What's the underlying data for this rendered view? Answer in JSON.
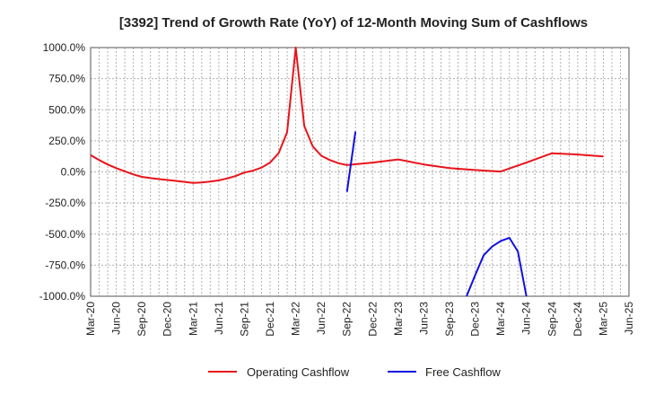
{
  "chart_data": {
    "type": "line",
    "title": "[3392]  Trend of Growth Rate (YoY) of 12-Month Moving Sum of Cashflows",
    "xlabel": "",
    "ylabel": "",
    "ylim": [
      -1000,
      1000
    ],
    "y_ticks": [
      1000,
      750,
      500,
      250,
      0,
      -250,
      -500,
      -750,
      -1000
    ],
    "y_tick_labels": [
      "1000.0%",
      "750.0%",
      "500.0%",
      "250.0%",
      "0.0%",
      "-250.0%",
      "-500.0%",
      "-750.0%",
      "-1000.0%"
    ],
    "x_tick_labels": [
      "Mar-20",
      "Jun-20",
      "Sep-20",
      "Dec-20",
      "Mar-21",
      "Jun-21",
      "Sep-21",
      "Dec-21",
      "Mar-22",
      "Jun-22",
      "Sep-22",
      "Dec-22",
      "Mar-23",
      "Jun-23",
      "Sep-23",
      "Dec-23",
      "Mar-24",
      "Jun-24",
      "Sep-24",
      "Dec-24",
      "Mar-25",
      "Jun-25"
    ],
    "x_range": [
      "Mar-20",
      "Jun-25"
    ],
    "grid": true,
    "legend_position": "bottom-center",
    "series": [
      {
        "name": "Operating Cashflow",
        "color": "#e8141b",
        "points": [
          [
            "Mar-20",
            135
          ],
          [
            "Apr-20",
            95
          ],
          [
            "May-20",
            60
          ],
          [
            "Jun-20",
            30
          ],
          [
            "Jul-20",
            5
          ],
          [
            "Aug-20",
            -20
          ],
          [
            "Sep-20",
            -40
          ],
          [
            "Oct-20",
            -50
          ],
          [
            "Nov-20",
            -58
          ],
          [
            "Dec-20",
            -65
          ],
          [
            "Jan-21",
            -72
          ],
          [
            "Feb-21",
            -80
          ],
          [
            "Mar-21",
            -88
          ],
          [
            "Apr-21",
            -85
          ],
          [
            "May-21",
            -78
          ],
          [
            "Jun-21",
            -68
          ],
          [
            "Jul-21",
            -52
          ],
          [
            "Aug-21",
            -32
          ],
          [
            "Sep-21",
            -5
          ],
          [
            "Oct-21",
            10
          ],
          [
            "Nov-21",
            35
          ],
          [
            "Dec-21",
            75
          ],
          [
            "Jan-22",
            150
          ],
          [
            "Feb-22",
            320
          ],
          [
            "Mar-22",
            1000
          ],
          [
            "Apr-22",
            370
          ],
          [
            "May-22",
            205
          ],
          [
            "Jun-22",
            130
          ],
          [
            "Jul-22",
            95
          ],
          [
            "Aug-22",
            70
          ],
          [
            "Sep-22",
            55
          ],
          [
            "Dec-22",
            75
          ],
          [
            "Mar-23",
            100
          ],
          [
            "Jun-23",
            60
          ],
          [
            "Sep-23",
            30
          ],
          [
            "Dec-23",
            15
          ],
          [
            "Mar-24",
            3
          ],
          [
            "Jun-24",
            75
          ],
          [
            "Sep-24",
            150
          ],
          [
            "Dec-24",
            140
          ],
          [
            "Mar-25",
            125
          ]
        ]
      },
      {
        "name": "Free Cashflow",
        "color": "#1010e0",
        "segments": [
          [
            [
              "Sep-22",
              -160
            ],
            [
              "Oct-22",
              325
            ]
          ],
          [
            [
              "Nov-23",
              -1000
            ],
            [
              "Dec-23",
              -830
            ],
            [
              "Jan-24",
              -670
            ],
            [
              "Feb-24",
              -600
            ],
            [
              "Mar-24",
              -555
            ],
            [
              "Apr-24",
              -530
            ],
            [
              "May-24",
              -640
            ],
            [
              "Jun-24",
              -1000
            ]
          ]
        ]
      }
    ]
  }
}
